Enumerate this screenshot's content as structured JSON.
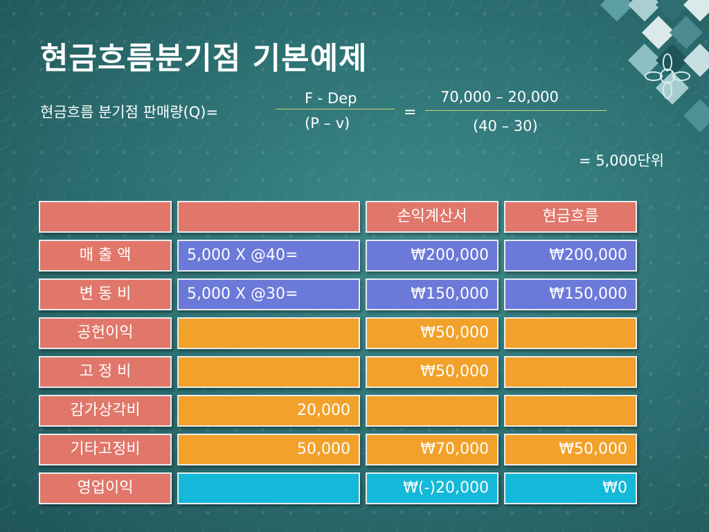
{
  "title": "현금흐름분기점 기본예제",
  "formula": {
    "label": "현금흐름 분기점 판매량(Q)=",
    "frac1_top": "F - Dep",
    "frac1_bottom": "(P – v)",
    "equals": "=",
    "frac2_top": "70,000 – 20,000",
    "frac2_bottom": "(40 – 30)",
    "result": "= 5,000단위"
  },
  "table": {
    "headers": [
      "",
      "",
      "손익계산서",
      "현금흐름"
    ],
    "rows": [
      {
        "label": "매 출 액",
        "calc": "5,000 X @40=",
        "income": "₩200,000",
        "cash": "₩200,000"
      },
      {
        "label": "변 동 비",
        "calc": "5,000 X @30=",
        "income": "₩150,000",
        "cash": "₩150,000"
      },
      {
        "label": "공헌이익",
        "calc": "",
        "income": "₩50,000",
        "cash": ""
      },
      {
        "label": "고 정 비",
        "calc": "",
        "income": "₩50,000",
        "cash": ""
      },
      {
        "label": "감가상각비",
        "calc": "20,000",
        "income": "",
        "cash": ""
      },
      {
        "label": "기타고정비",
        "calc": "50,000",
        "income": "₩70,000",
        "cash": "₩50,000"
      },
      {
        "label": "영업이익",
        "calc": "",
        "income": "₩(-)20,000",
        "cash": "₩0"
      }
    ]
  },
  "colors": {
    "label_cell": "#e0776a",
    "value_blue": "#6b79d8",
    "value_orange": "#f2a12a",
    "value_cyan": "#14b8d8",
    "background": "#2f7476"
  }
}
